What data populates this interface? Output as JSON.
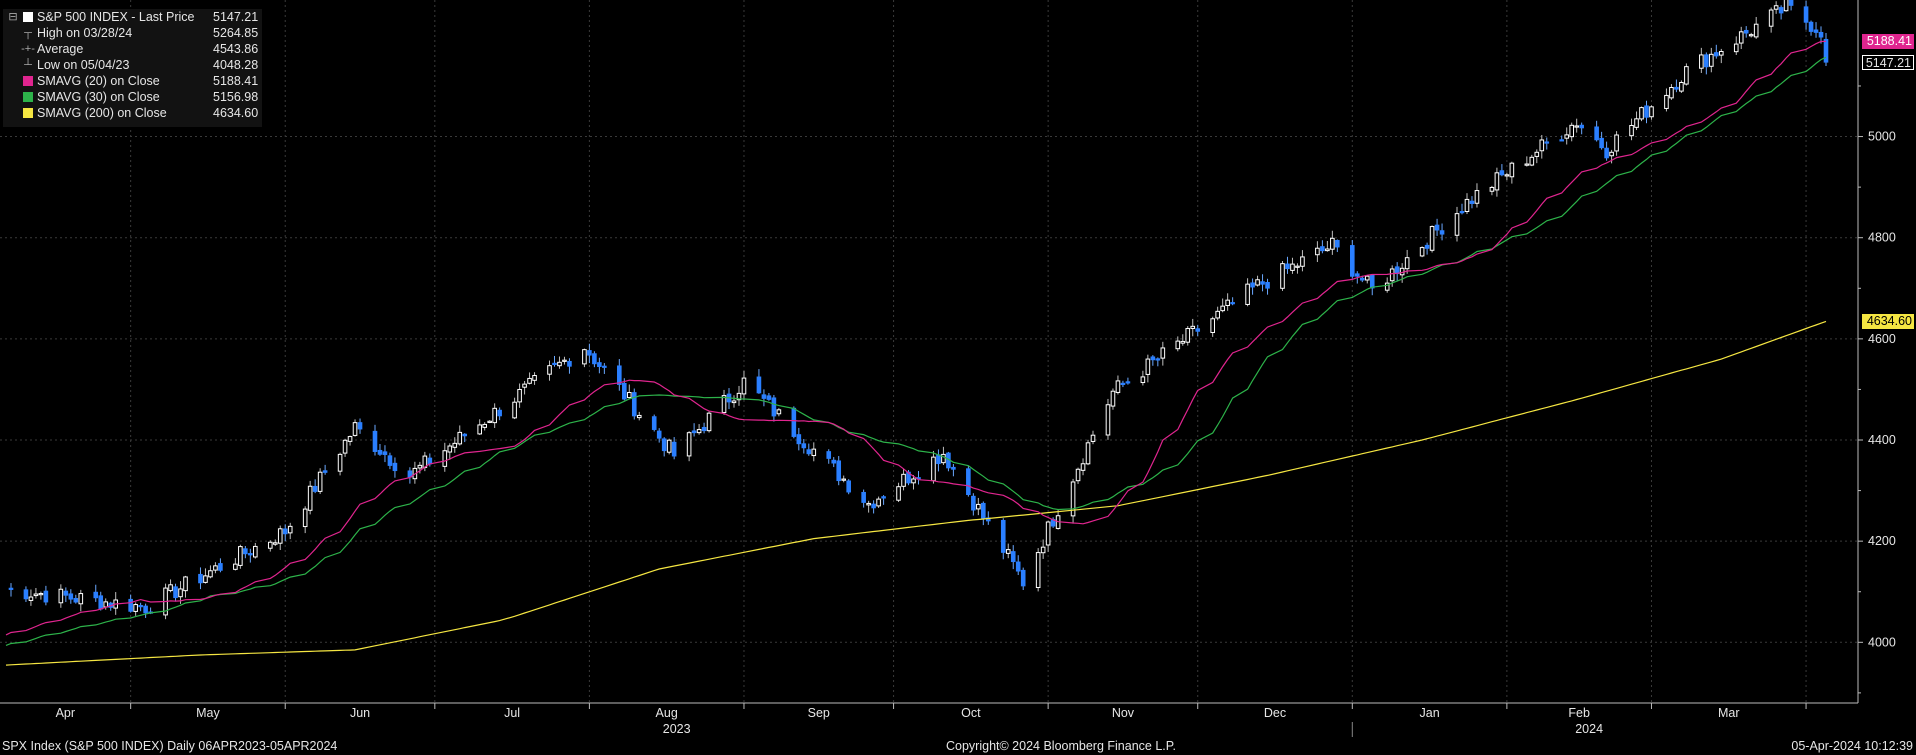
{
  "legend": {
    "title": {
      "label": "S&P 500 INDEX - Last Price",
      "value": "5147.21"
    },
    "rows": [
      {
        "label": "High on 03/28/24",
        "value": "5264.85",
        "glyph": "┬"
      },
      {
        "label": "Average",
        "value": "4543.86",
        "glyph": "-+-"
      },
      {
        "label": "Low on 05/04/23",
        "value": "4048.28",
        "glyph": "┴"
      },
      {
        "label": "SMAVG (20)  on Close",
        "value": "5188.41",
        "color": "#e0258f"
      },
      {
        "label": "SMAVG (30)  on Close",
        "value": "5156.98",
        "color": "#2db34a"
      },
      {
        "label": "SMAVG (200)  on Close",
        "value": "4634.60",
        "color": "#f5e642"
      }
    ]
  },
  "tags": {
    "sma20": {
      "text": "5188.41",
      "value": 5188.41,
      "color": "#e0258f"
    },
    "last": {
      "text": "5147.21",
      "value": 5147.21,
      "color": "#000000"
    },
    "sma200": {
      "text": "4634.60",
      "value": 4634.6,
      "color": "#f5e642"
    }
  },
  "footer": {
    "left": "SPX Index (S&P 500 INDEX)  Daily 06APR2023-05APR2024",
    "center": "Copyright© 2024 Bloomberg Finance L.P.",
    "right": "05-Apr-2024 10:12:39"
  },
  "chart_data": {
    "type": "candlestick",
    "title": "S&P 500 INDEX - Last Price",
    "x_months": [
      "Apr",
      "May",
      "Jun",
      "Jul",
      "Aug",
      "Sep",
      "Oct",
      "Nov",
      "Dec",
      "Jan",
      "Feb",
      "Mar"
    ],
    "x_years": [
      "2023",
      "2024"
    ],
    "x_range": [
      "2023-04-06",
      "2024-04-05"
    ],
    "y_ticks": [
      4000,
      4200,
      4400,
      4600,
      4800,
      5000
    ],
    "y_range": [
      3880,
      5270
    ],
    "grid": true,
    "legend_position": "top-left",
    "key_points": [
      {
        "date": "2023-04-06",
        "value": 4105
      },
      {
        "date": "2023-05-04",
        "value": 4070
      },
      {
        "date": "2023-06-01",
        "value": 4220
      },
      {
        "date": "2023-06-15",
        "value": 4425
      },
      {
        "date": "2023-06-26",
        "value": 4330
      },
      {
        "date": "2023-07-31",
        "value": 4585
      },
      {
        "date": "2023-08-18",
        "value": 4370
      },
      {
        "date": "2023-09-01",
        "value": 4515
      },
      {
        "date": "2023-09-26",
        "value": 4275
      },
      {
        "date": "2023-10-11",
        "value": 4375
      },
      {
        "date": "2023-10-27",
        "value": 4120
      },
      {
        "date": "2023-11-14",
        "value": 4495
      },
      {
        "date": "2023-12-13",
        "value": 4705
      },
      {
        "date": "2023-12-28",
        "value": 4785
      },
      {
        "date": "2024-01-05",
        "value": 4695
      },
      {
        "date": "2024-01-24",
        "value": 4870
      },
      {
        "date": "2024-02-15",
        "value": 5030
      },
      {
        "date": "2024-02-21",
        "value": 4975
      },
      {
        "date": "2024-03-08",
        "value": 5130
      },
      {
        "date": "2024-03-28",
        "value": 5255
      },
      {
        "date": "2024-04-04",
        "value": 5210
      },
      {
        "date": "2024-04-05",
        "value": 5147.21
      }
    ],
    "series": [
      {
        "name": "SMAVG (20)  on Close",
        "color": "#e0258f",
        "last": 5188.41
      },
      {
        "name": "SMAVG (30)  on Close",
        "color": "#2db34a",
        "last": 5156.98
      },
      {
        "name": "SMAVG (200)  on Close",
        "color": "#f5e642",
        "last": 4634.6
      }
    ],
    "up_color": "#ffffff",
    "down_color": "#2a7fff"
  }
}
